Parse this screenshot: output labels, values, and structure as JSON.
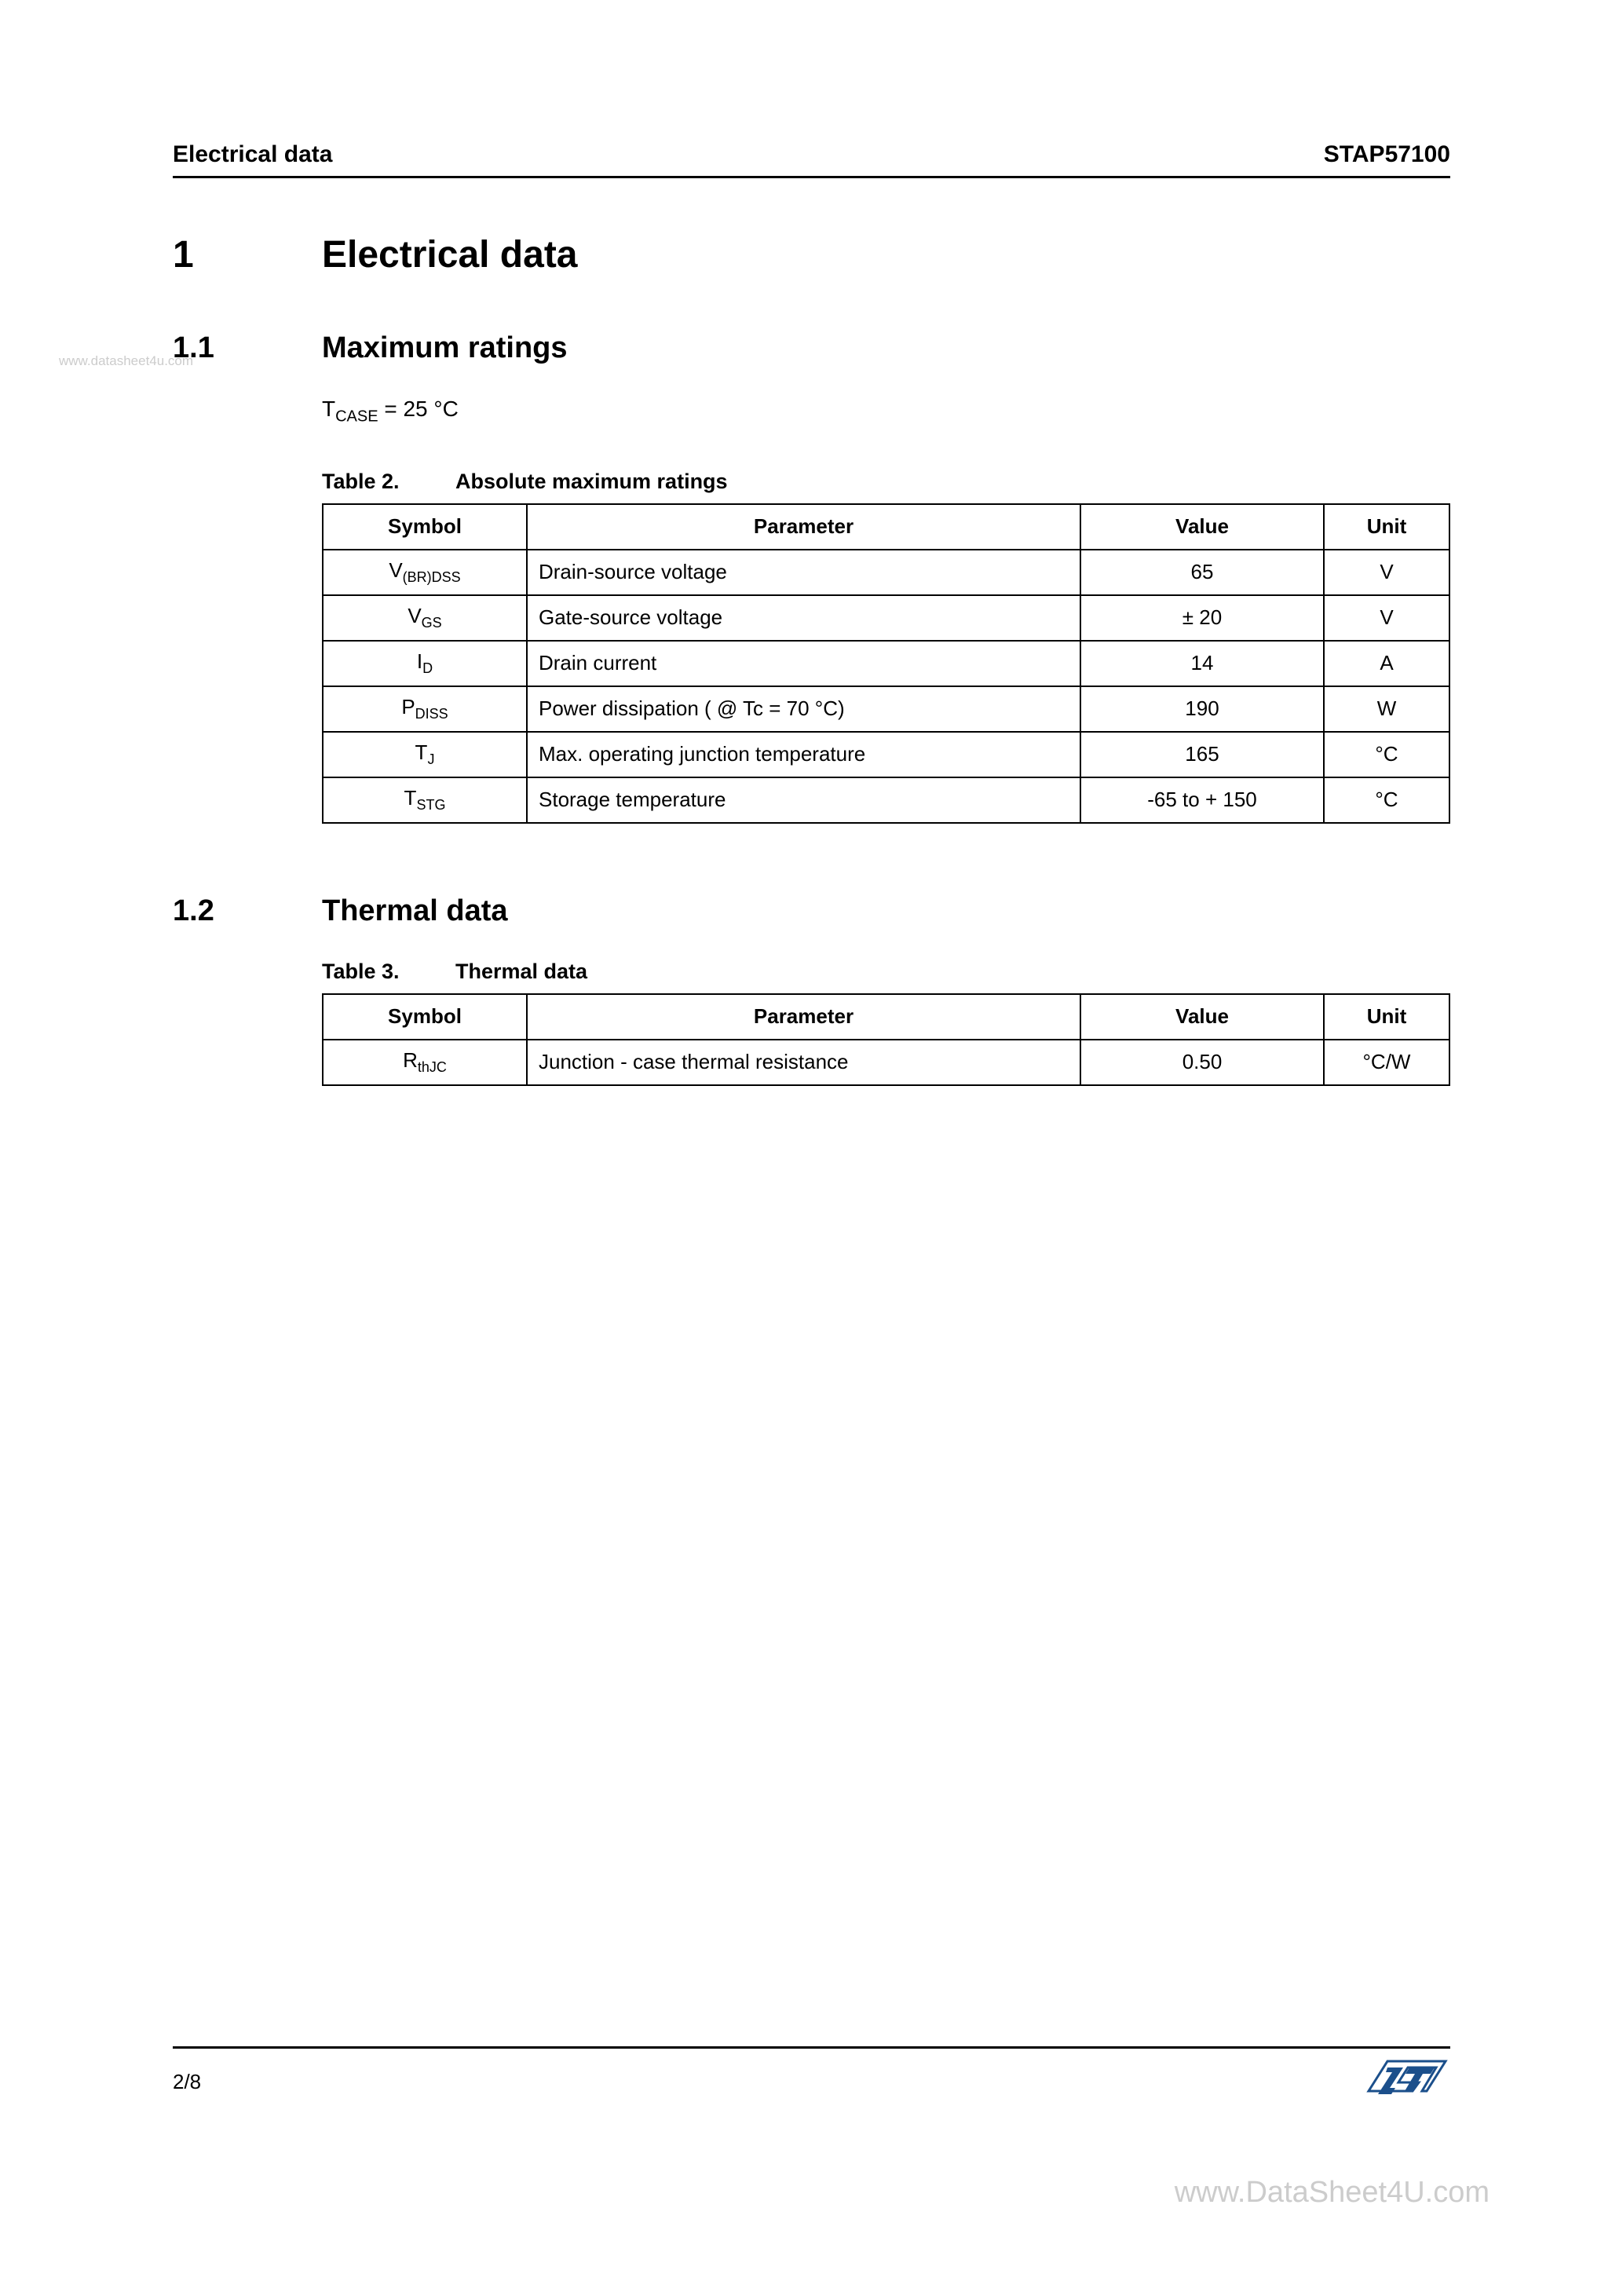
{
  "header": {
    "left": "Electrical data",
    "right": "STAP57100"
  },
  "section1": {
    "num": "1",
    "title": "Electrical data"
  },
  "section11": {
    "num": "1.1",
    "title": "Maximum ratings",
    "watermark": "www.datasheet4u.com",
    "tcase_prefix": "T",
    "tcase_sub": "CASE",
    "tcase_rest": " = 25 °C"
  },
  "table2": {
    "caption_num": "Table 2.",
    "caption_title": "Absolute maximum ratings",
    "headers": {
      "symbol": "Symbol",
      "parameter": "Parameter",
      "value": "Value",
      "unit": "Unit"
    },
    "rows": [
      {
        "sym_main": "V",
        "sym_sub": "(BR)DSS",
        "param": "Drain-source voltage",
        "value": "65",
        "unit": "V"
      },
      {
        "sym_main": "V",
        "sym_sub": "GS",
        "param": "Gate-source voltage",
        "value": "± 20",
        "unit": "V"
      },
      {
        "sym_main": "I",
        "sym_sub": "D",
        "param": "Drain current",
        "value": "14",
        "unit": "A"
      },
      {
        "sym_main": "P",
        "sym_sub": "DISS",
        "param": "Power dissipation ( @ Tc = 70 °C)",
        "value": "190",
        "unit": "W"
      },
      {
        "sym_main": "T",
        "sym_sub": "J",
        "param": "Max. operating junction temperature",
        "value": "165",
        "unit": "°C"
      },
      {
        "sym_main": "T",
        "sym_sub": "STG",
        "param": "Storage temperature",
        "value": "-65 to + 150",
        "unit": "°C"
      }
    ]
  },
  "section12": {
    "num": "1.2",
    "title": "Thermal data"
  },
  "table3": {
    "caption_num": "Table 3.",
    "caption_title": "Thermal data",
    "headers": {
      "symbol": "Symbol",
      "parameter": "Parameter",
      "value": "Value",
      "unit": "Unit"
    },
    "rows": [
      {
        "sym_main": "R",
        "sym_sub": "thJC",
        "param": "Junction - case thermal resistance",
        "value": "0.50",
        "unit": "°C/W"
      }
    ]
  },
  "footer": {
    "page": "2/8",
    "watermark": "www.DataSheet4U.com"
  },
  "colors": {
    "text": "#000000",
    "watermark": "#cccccc",
    "logo_blue": "#1b4f8b",
    "background": "#ffffff"
  }
}
